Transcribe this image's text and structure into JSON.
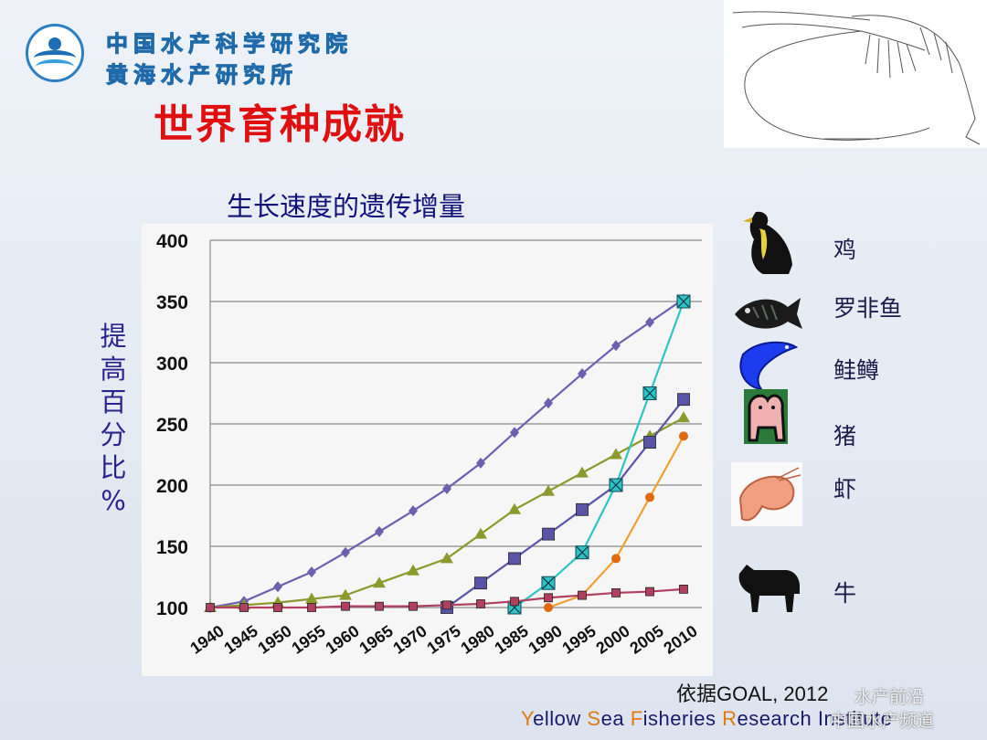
{
  "header": {
    "org_line1": "中国水产科学研究院",
    "org_line2": "黄海水产研究所",
    "title": "世界育种成就"
  },
  "colors": {
    "title_red": "#e01010",
    "chicken": "#6e5fb0",
    "tilapia": "#8a9a2c",
    "salmon": "#5a54a8",
    "pig": "#2cc4c4",
    "shrimp": "#f0a030",
    "cattle": "#b04060"
  },
  "chart_data": {
    "type": "line",
    "title": "生长速度的遗传增量",
    "ylabel": "提高百分比%",
    "xlabel": "",
    "ylim": [
      100,
      400
    ],
    "yticks": [
      100,
      150,
      200,
      250,
      300,
      350,
      400
    ],
    "xticks": [
      1940,
      1945,
      1950,
      1955,
      1960,
      1965,
      1970,
      1975,
      1980,
      1985,
      1990,
      1995,
      2000,
      2005,
      2010
    ],
    "grid": true,
    "legend_position": "right",
    "series": [
      {
        "name": "鸡",
        "icon": "chicken-icon",
        "color": "#6e5fb0",
        "marker": "diamond",
        "x": [
          1940,
          1945,
          1950,
          1955,
          1960,
          1965,
          1970,
          1975,
          1980,
          1985,
          1990,
          1995,
          2000,
          2005,
          2010
        ],
        "y": [
          100,
          105,
          117,
          129,
          145,
          162,
          179,
          197,
          218,
          243,
          267,
          291,
          314,
          333,
          352
        ]
      },
      {
        "name": "罗非鱼",
        "icon": "tilapia-icon",
        "color": "#8a9a2c",
        "marker": "triangle",
        "x": [
          1940,
          1945,
          1950,
          1955,
          1960,
          1965,
          1970,
          1975,
          1980,
          1985,
          1990,
          1995,
          2000,
          2005,
          2010
        ],
        "y": [
          100,
          102,
          104,
          107,
          110,
          120,
          130,
          140,
          160,
          180,
          195,
          210,
          225,
          240,
          255
        ]
      },
      {
        "name": "鲑鳟",
        "icon": "salmon-icon",
        "color": "#5a54a8",
        "marker": "square",
        "x": [
          1975,
          1980,
          1985,
          1990,
          1995,
          2000,
          2005,
          2010
        ],
        "y": [
          100,
          120,
          140,
          160,
          180,
          200,
          235,
          270
        ]
      },
      {
        "name": "猪",
        "icon": "pig-icon",
        "color": "#2cc4c4",
        "marker": "square-x",
        "x": [
          1985,
          1990,
          1995,
          2000,
          2005,
          2010
        ],
        "y": [
          100,
          120,
          145,
          200,
          275,
          350
        ]
      },
      {
        "name": "虾",
        "icon": "shrimp-icon",
        "color": "#f0a030",
        "marker": "circle",
        "x": [
          1990,
          1995,
          2000,
          2005,
          2010
        ],
        "y": [
          100,
          110,
          140,
          190,
          240
        ]
      },
      {
        "name": "牛",
        "icon": "cattle-icon",
        "color": "#b04060",
        "marker": "square",
        "x": [
          1940,
          1945,
          1950,
          1955,
          1960,
          1965,
          1970,
          1975,
          1980,
          1985,
          1990,
          1995,
          2000,
          2005,
          2010
        ],
        "y": [
          100,
          100,
          100,
          100,
          101,
          101,
          101,
          102,
          103,
          105,
          108,
          110,
          112,
          113,
          115
        ]
      }
    ]
  },
  "source_text": "依据GOAL, 2012",
  "footer": {
    "w1_cap": "Y",
    "w1_rest": "ellow ",
    "w2_cap": "S",
    "w2_rest": "ea ",
    "w3_cap": "F",
    "w3_rest": "isheries ",
    "w4_cap": "R",
    "w4_rest": "esearch Institute"
  },
  "watermark": {
    "line1": "水产前沿",
    "line2": "中国水产频道"
  }
}
